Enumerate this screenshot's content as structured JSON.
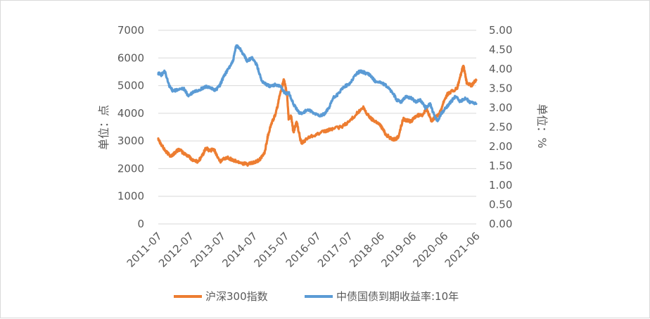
{
  "chart_data": {
    "type": "line",
    "title": "",
    "ylabel_left": "单位：点",
    "ylabel_right": "单位：%",
    "x_tick_labels": [
      "2011-07",
      "2012-07",
      "2013-07",
      "2014-07",
      "2015-07",
      "2016-07",
      "2017-07",
      "2018-06",
      "2019-06",
      "2020-06",
      "2021-06"
    ],
    "y_left_ticks": [
      "0",
      "1000",
      "2000",
      "3000",
      "4000",
      "5000",
      "6000",
      "7000"
    ],
    "y_right_ticks": [
      "0.00",
      "0.50",
      "1.00",
      "1.50",
      "2.00",
      "2.50",
      "3.00",
      "3.50",
      "4.00",
      "4.50",
      "5.00"
    ],
    "y_left_range": [
      0,
      7000
    ],
    "y_right_range": [
      0,
      5
    ],
    "x_range": [
      2011.5,
      2021.5
    ],
    "legend_position": "bottom",
    "grid": "horizontal",
    "series": [
      {
        "name": "沪深300指数",
        "axis": "left",
        "color": "#ED7D31",
        "x": [
          2011.5,
          2011.6,
          2011.75,
          2011.9,
          2012.0,
          2012.15,
          2012.3,
          2012.45,
          2012.6,
          2012.75,
          2012.9,
          2013.0,
          2013.1,
          2013.25,
          2013.45,
          2013.55,
          2013.7,
          2013.85,
          2014.0,
          2014.15,
          2014.3,
          2014.45,
          2014.6,
          2014.75,
          2014.85,
          2014.95,
          2015.05,
          2015.2,
          2015.35,
          2015.45,
          2015.55,
          2015.6,
          2015.68,
          2015.75,
          2015.85,
          2016.0,
          2016.1,
          2016.25,
          2016.5,
          2016.75,
          2017.0,
          2017.25,
          2017.5,
          2017.75,
          2017.95,
          2018.05,
          2018.2,
          2018.35,
          2018.5,
          2018.65,
          2018.8,
          2018.95,
          2019.05,
          2019.2,
          2019.3,
          2019.45,
          2019.6,
          2019.8,
          2019.95,
          2020.1,
          2020.2,
          2020.35,
          2020.5,
          2020.6,
          2020.75,
          2020.9,
          2021.05,
          2021.1,
          2021.2,
          2021.35,
          2021.5
        ],
        "y": [
          3100,
          2850,
          2600,
          2450,
          2550,
          2700,
          2550,
          2450,
          2300,
          2250,
          2500,
          2750,
          2650,
          2700,
          2250,
          2350,
          2400,
          2300,
          2250,
          2200,
          2150,
          2200,
          2250,
          2400,
          2600,
          3200,
          3600,
          4000,
          4800,
          5200,
          4700,
          3800,
          3900,
          3300,
          3700,
          2900,
          3000,
          3150,
          3250,
          3350,
          3450,
          3500,
          3700,
          4000,
          4200,
          4000,
          3800,
          3700,
          3550,
          3250,
          3100,
          3050,
          3150,
          3800,
          3750,
          3700,
          3900,
          3950,
          4150,
          3700,
          3850,
          4000,
          4500,
          4700,
          4800,
          4900,
          5550,
          5700,
          5100,
          5000,
          5200
        ]
      },
      {
        "name": "中债国债到期收益率:10年",
        "axis": "right",
        "color": "#5B9BD5",
        "x": [
          2011.5,
          2011.6,
          2011.7,
          2011.85,
          2011.95,
          2012.1,
          2012.3,
          2012.45,
          2012.6,
          2012.75,
          2012.9,
          2013.0,
          2013.15,
          2013.3,
          2013.45,
          2013.55,
          2013.7,
          2013.85,
          2013.95,
          2014.05,
          2014.2,
          2014.3,
          2014.45,
          2014.6,
          2014.75,
          2014.9,
          2015.05,
          2015.2,
          2015.35,
          2015.5,
          2015.6,
          2015.75,
          2015.9,
          2016.0,
          2016.2,
          2016.4,
          2016.6,
          2016.75,
          2016.9,
          2017.0,
          2017.15,
          2017.35,
          2017.5,
          2017.7,
          2017.85,
          2018.0,
          2018.15,
          2018.3,
          2018.5,
          2018.7,
          2018.9,
          2019.0,
          2019.15,
          2019.3,
          2019.45,
          2019.6,
          2019.75,
          2019.9,
          2020.05,
          2020.2,
          2020.3,
          2020.4,
          2020.55,
          2020.7,
          2020.85,
          2021.0,
          2021.15,
          2021.3,
          2021.5
        ],
        "y": [
          3.9,
          3.85,
          3.95,
          3.55,
          3.45,
          3.45,
          3.5,
          3.3,
          3.4,
          3.45,
          3.5,
          3.55,
          3.5,
          3.45,
          3.6,
          3.8,
          4.0,
          4.2,
          4.6,
          4.55,
          4.35,
          4.2,
          4.3,
          4.1,
          3.7,
          3.6,
          3.55,
          3.6,
          3.55,
          3.35,
          3.4,
          3.1,
          2.9,
          2.85,
          2.95,
          2.85,
          2.8,
          2.85,
          3.05,
          3.25,
          3.35,
          3.55,
          3.6,
          3.85,
          3.95,
          3.9,
          3.85,
          3.7,
          3.65,
          3.55,
          3.35,
          3.2,
          3.15,
          3.3,
          3.25,
          3.15,
          3.2,
          3.0,
          3.1,
          2.75,
          2.65,
          2.85,
          3.0,
          3.15,
          3.3,
          3.15,
          3.25,
          3.15,
          3.1
        ]
      }
    ]
  }
}
